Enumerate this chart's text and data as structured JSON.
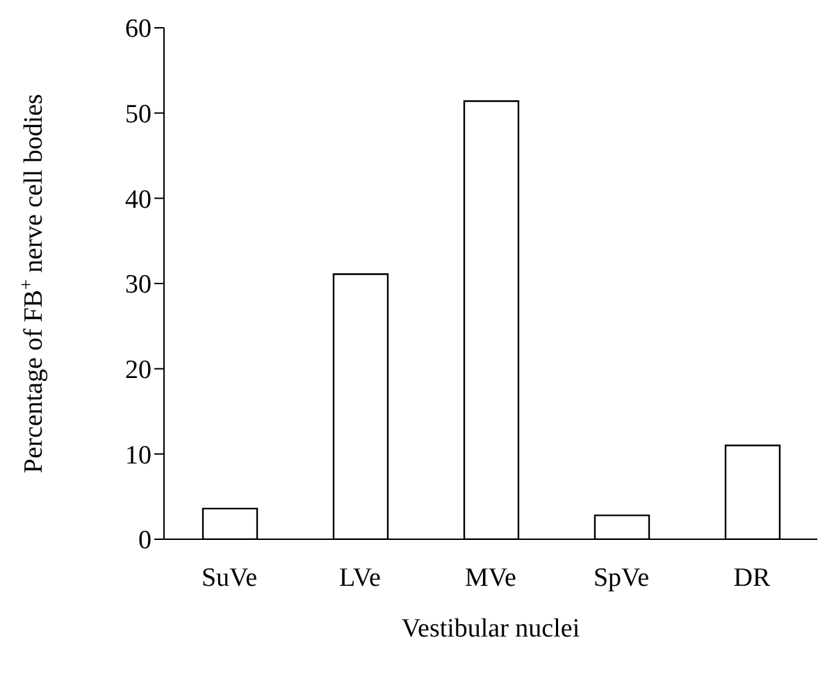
{
  "chart_data": {
    "type": "bar",
    "xlabel": "Vestibular nuclei",
    "ylabel": "Percentage of FB$^{+}$ nerve cell bodies",
    "categories": [
      "SuVe",
      "LVe",
      "MVe",
      "SpVe",
      "DR"
    ],
    "values": [
      3.6,
      31.1,
      51.4,
      2.8,
      11.0
    ],
    "color": "#ffffff",
    "ylim": [
      0,
      60
    ],
    "yticks": [
      0,
      10,
      20,
      30,
      40,
      50,
      60
    ],
    "grid": false,
    "legend": false
  }
}
